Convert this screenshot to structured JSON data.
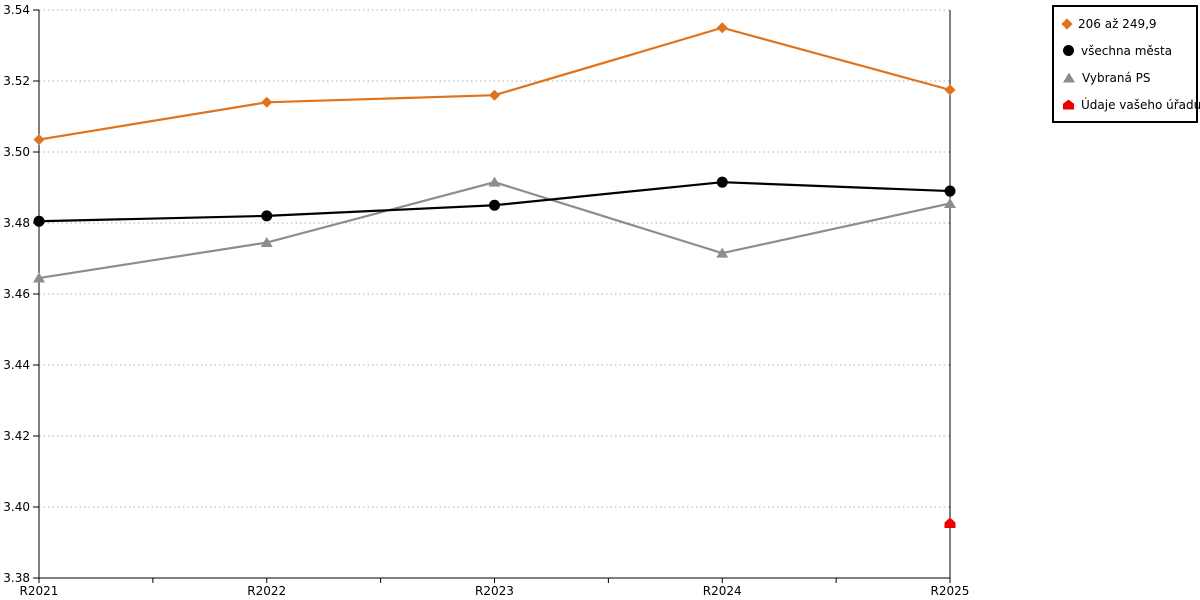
{
  "chart_data": {
    "type": "line",
    "title": "",
    "xlabel": "",
    "ylabel": "",
    "categories": [
      "R2021",
      "R2022",
      "R2023",
      "R2024",
      "R2025"
    ],
    "series": [
      {
        "name": "206 až 249,9",
        "color": "#E0731D",
        "marker": "diamond",
        "values": [
          3.5035,
          3.514,
          3.516,
          3.535,
          3.5175
        ]
      },
      {
        "name": "všechna města",
        "color": "#000000",
        "marker": "circle",
        "values": [
          3.4805,
          3.482,
          3.485,
          3.4915,
          3.489
        ]
      },
      {
        "name": "Vybraná PS",
        "color": "#8D8D8D",
        "marker": "triangle",
        "values": [
          3.4645,
          3.4745,
          3.4915,
          3.4715,
          3.4855
        ]
      },
      {
        "name": "Údaje vašeho úřadu",
        "color": "#EE0000",
        "marker": "house",
        "values": [
          null,
          null,
          null,
          null,
          3.3955
        ]
      }
    ],
    "ylim": [
      3.38,
      3.54
    ],
    "ytick_step": 0.02,
    "ytick_labels": [
      "3.38",
      "3.40",
      "3.42",
      "3.44",
      "3.46",
      "3.48",
      "3.50",
      "3.52",
      "3.54"
    ],
    "grid": "horizontal-dotted",
    "grid_color": "#b0b0b0",
    "axis_color": "#000000",
    "legend_position": "top-right",
    "legend_border_color": "#000000"
  }
}
